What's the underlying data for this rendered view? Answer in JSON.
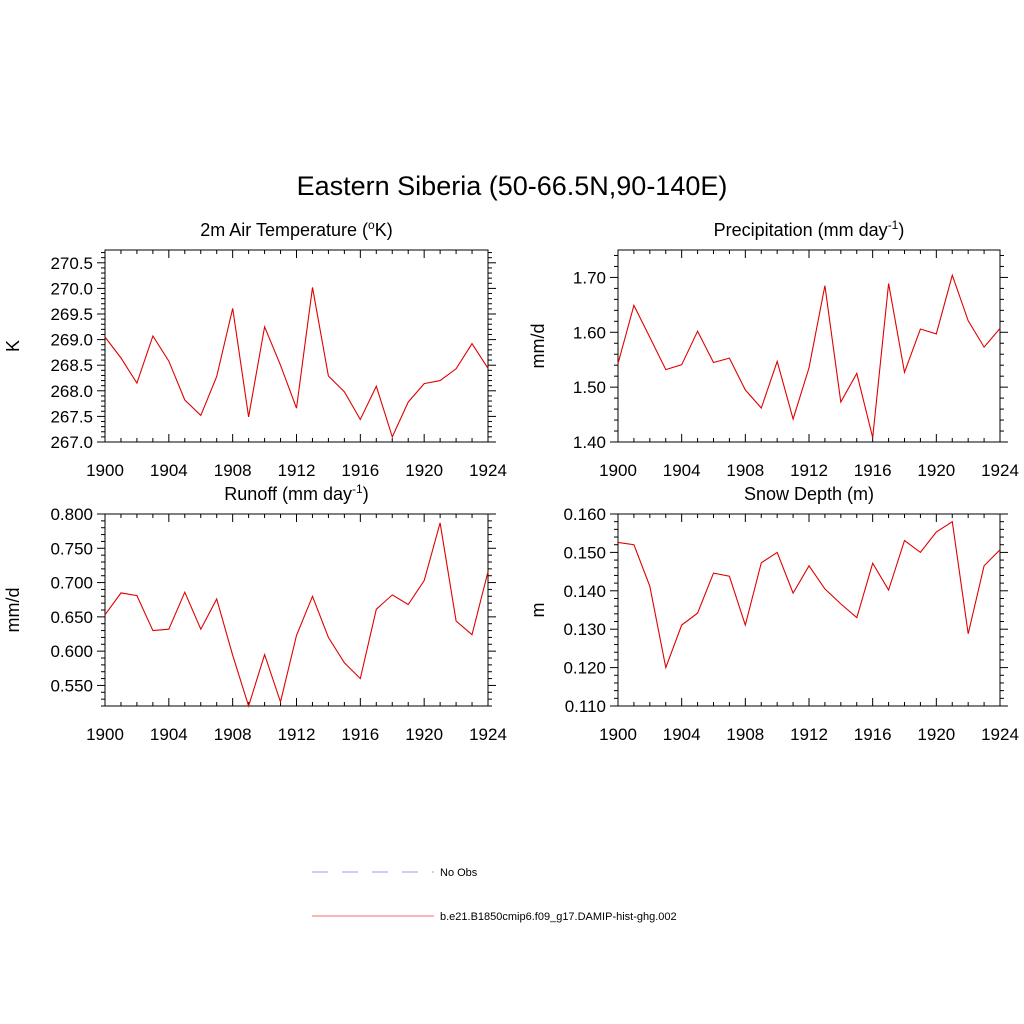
{
  "title": "Eastern Siberia (50-66.5N,90-140E)",
  "legend": [
    {
      "label": "No Obs",
      "color": "#9999ff",
      "dash": true
    },
    {
      "label": "b.e21.B1850cmip6.f09_g17.DAMIP-hist-ghg.002",
      "color": "#ff6666",
      "dash": false
    }
  ],
  "chart_data": [
    {
      "type": "line",
      "title": "2m Air Temperature (",
      "title_sup": "o",
      "title_end": "K)",
      "ylabel": "K",
      "x": [
        1900,
        1901,
        1902,
        1903,
        1904,
        1905,
        1906,
        1907,
        1908,
        1909,
        1910,
        1911,
        1912,
        1913,
        1914,
        1915,
        1916,
        1917,
        1918,
        1919,
        1920,
        1921,
        1922,
        1923,
        1924
      ],
      "xlim": [
        1900,
        1924
      ],
      "xticks": [
        1900,
        1904,
        1908,
        1912,
        1916,
        1920,
        1924
      ],
      "ylim": [
        267.0,
        270.75
      ],
      "yticks": [
        267.0,
        267.5,
        268.0,
        268.5,
        269.0,
        269.5,
        270.0,
        270.5
      ],
      "ytick_labels": [
        "267.0",
        "267.5",
        "268.0",
        "268.5",
        "269.0",
        "269.5",
        "270.0",
        "270.5"
      ],
      "series": [
        {
          "color": "#e00000",
          "values": [
            269.05,
            268.64,
            268.15,
            269.07,
            268.58,
            267.82,
            267.52,
            268.28,
            269.61,
            267.49,
            269.25,
            268.5,
            267.66,
            270.02,
            268.29,
            267.98,
            267.44,
            268.09,
            267.1,
            267.78,
            268.14,
            268.2,
            268.43,
            268.92,
            268.44
          ]
        }
      ]
    },
    {
      "type": "line",
      "title": "Precipitation (mm day",
      "title_sup": "-1",
      "title_end": ")",
      "ylabel": "mm/d",
      "x": [
        1900,
        1901,
        1902,
        1903,
        1904,
        1905,
        1906,
        1907,
        1908,
        1909,
        1910,
        1911,
        1912,
        1913,
        1914,
        1915,
        1916,
        1917,
        1918,
        1919,
        1920,
        1921,
        1922,
        1923,
        1924
      ],
      "xlim": [
        1900,
        1924
      ],
      "xticks": [
        1900,
        1904,
        1908,
        1912,
        1916,
        1920,
        1924
      ],
      "ylim": [
        1.4,
        1.75
      ],
      "yticks": [
        1.4,
        1.5,
        1.6,
        1.7
      ],
      "ytick_labels": [
        "1.40",
        "1.50",
        "1.60",
        "1.70"
      ],
      "series": [
        {
          "color": "#e00000",
          "values": [
            1.543,
            1.649,
            1.591,
            1.532,
            1.541,
            1.602,
            1.545,
            1.553,
            1.495,
            1.462,
            1.547,
            1.442,
            1.535,
            1.685,
            1.473,
            1.525,
            1.408,
            1.689,
            1.527,
            1.606,
            1.597,
            1.704,
            1.621,
            1.573,
            1.607
          ]
        }
      ]
    },
    {
      "type": "line",
      "title": "Runoff (mm day",
      "title_sup": "-1",
      "title_end": ")",
      "ylabel": "mm/d",
      "x": [
        1900,
        1901,
        1902,
        1903,
        1904,
        1905,
        1906,
        1907,
        1908,
        1909,
        1910,
        1911,
        1912,
        1913,
        1914,
        1915,
        1916,
        1917,
        1918,
        1919,
        1920,
        1921,
        1922,
        1923,
        1924
      ],
      "xlim": [
        1900,
        1924
      ],
      "xticks": [
        1900,
        1904,
        1908,
        1912,
        1916,
        1920,
        1924
      ],
      "ylim": [
        0.52,
        0.8
      ],
      "yticks": [
        0.55,
        0.6,
        0.65,
        0.7,
        0.75,
        0.8
      ],
      "ytick_labels": [
        "0.550",
        "0.600",
        "0.650",
        "0.700",
        "0.750",
        "0.800"
      ],
      "series": [
        {
          "color": "#e00000",
          "values": [
            0.653,
            0.685,
            0.681,
            0.63,
            0.632,
            0.686,
            0.632,
            0.676,
            0.594,
            0.52,
            0.595,
            0.526,
            0.623,
            0.68,
            0.62,
            0.583,
            0.56,
            0.661,
            0.682,
            0.668,
            0.703,
            0.787,
            0.644,
            0.624,
            0.716
          ]
        }
      ]
    },
    {
      "type": "line",
      "title": "Snow Depth (m)",
      "title_sup": "",
      "title_end": "",
      "ylabel": "m",
      "x": [
        1900,
        1901,
        1902,
        1903,
        1904,
        1905,
        1906,
        1907,
        1908,
        1909,
        1910,
        1911,
        1912,
        1913,
        1914,
        1915,
        1916,
        1917,
        1918,
        1919,
        1920,
        1921,
        1922,
        1923,
        1924
      ],
      "xlim": [
        1900,
        1924
      ],
      "xticks": [
        1900,
        1904,
        1908,
        1912,
        1916,
        1920,
        1924
      ],
      "ylim": [
        0.11,
        0.16
      ],
      "yticks": [
        0.11,
        0.12,
        0.13,
        0.14,
        0.15,
        0.16
      ],
      "ytick_labels": [
        "0.110",
        "0.120",
        "0.130",
        "0.140",
        "0.150",
        "0.160"
      ],
      "series": [
        {
          "color": "#e00000",
          "values": [
            0.1526,
            0.152,
            0.1412,
            0.12,
            0.1311,
            0.1342,
            0.1446,
            0.1438,
            0.1311,
            0.1473,
            0.15,
            0.1394,
            0.1465,
            0.1405,
            0.1366,
            0.133,
            0.1472,
            0.1402,
            0.1531,
            0.15,
            0.1553,
            0.158,
            0.1288,
            0.1465,
            0.1507
          ]
        }
      ]
    }
  ]
}
